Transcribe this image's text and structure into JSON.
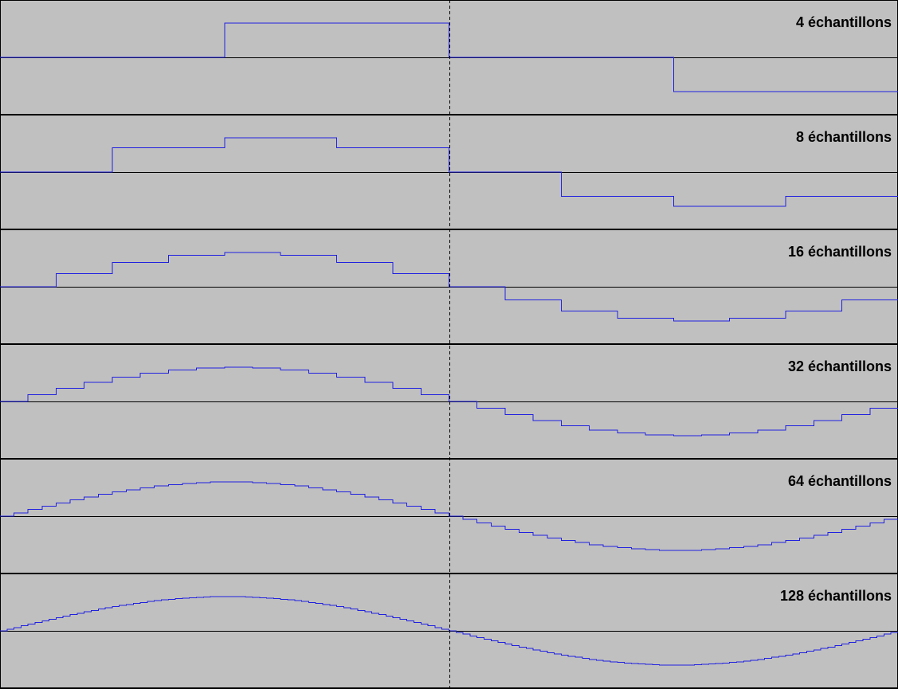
{
  "colors": {
    "panel_background": "#c0c0c0",
    "border": "#000000",
    "axis": "#000000",
    "signal": "#2020e0",
    "label": "#000000",
    "marker": "#000000"
  },
  "chart_data": [
    {
      "type": "line",
      "step": true,
      "signal": "sine",
      "periods_shown": 1,
      "samples": 4,
      "label": "4 échantillons",
      "ylim": [
        -1.5,
        1.5
      ],
      "grid": false,
      "legend": "none",
      "marker": "dashed vertical line at half period"
    },
    {
      "type": "line",
      "step": true,
      "signal": "sine",
      "periods_shown": 1,
      "samples": 8,
      "label": "8 échantillons",
      "ylim": [
        -1.5,
        1.5
      ],
      "grid": false,
      "legend": "none",
      "marker": "dashed vertical line at half period"
    },
    {
      "type": "line",
      "step": true,
      "signal": "sine",
      "periods_shown": 1,
      "samples": 16,
      "label": "16 échantillons",
      "ylim": [
        -1.5,
        1.5
      ],
      "grid": false,
      "legend": "none",
      "marker": "dashed vertical line at half period"
    },
    {
      "type": "line",
      "step": true,
      "signal": "sine",
      "periods_shown": 1,
      "samples": 32,
      "label": "32 échantillons",
      "ylim": [
        -1.5,
        1.5
      ],
      "grid": false,
      "legend": "none",
      "marker": "dashed vertical line at half period"
    },
    {
      "type": "line",
      "step": true,
      "signal": "sine",
      "periods_shown": 1,
      "samples": 64,
      "label": "64 échantillons",
      "ylim": [
        -1.5,
        1.5
      ],
      "grid": false,
      "legend": "none",
      "marker": "dashed vertical line at half period"
    },
    {
      "type": "line",
      "step": true,
      "signal": "sine",
      "periods_shown": 1,
      "samples": 128,
      "label": "128 échantillons",
      "ylim": [
        -1.5,
        1.5
      ],
      "grid": false,
      "legend": "none",
      "marker": "dashed vertical line at half period"
    }
  ]
}
